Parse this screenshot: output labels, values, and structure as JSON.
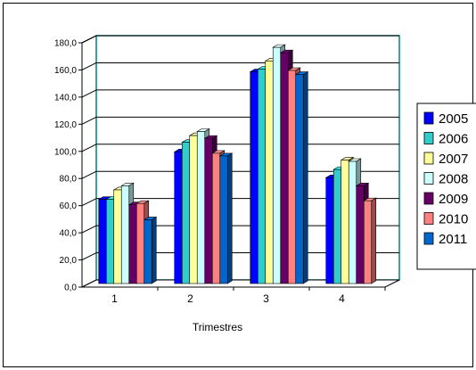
{
  "chart_data": {
    "type": "bar",
    "categories": [
      "1",
      "2",
      "3",
      "4"
    ],
    "series": [
      {
        "name": "2005",
        "color": "#0000ff",
        "values": [
          62,
          97,
          156,
          78
        ]
      },
      {
        "name": "2006",
        "color": "#33cccc",
        "values": [
          62,
          104,
          158,
          84
        ]
      },
      {
        "name": "2007",
        "color": "#ffff99",
        "values": [
          69,
          109,
          164,
          91
        ]
      },
      {
        "name": "2008",
        "color": "#ccffff",
        "values": [
          72,
          112,
          174,
          90
        ]
      },
      {
        "name": "2009",
        "color": "#660066",
        "values": [
          58,
          107,
          170,
          72
        ]
      },
      {
        "name": "2010",
        "color": "#ff8080",
        "values": [
          59,
          96,
          157,
          61
        ]
      },
      {
        "name": "2011",
        "color": "#0066cc",
        "values": [
          47,
          94,
          154,
          0
        ]
      }
    ],
    "title": "",
    "xlabel": "Trimestres",
    "ylabel": "",
    "ylim": [
      0,
      180
    ],
    "yticks": [
      "0,0",
      "20,0",
      "40,0",
      "60,0",
      "80,0",
      "100,0",
      "120,0",
      "140,0",
      "160,0",
      "180,0"
    ],
    "grid": true,
    "legend": "right"
  }
}
